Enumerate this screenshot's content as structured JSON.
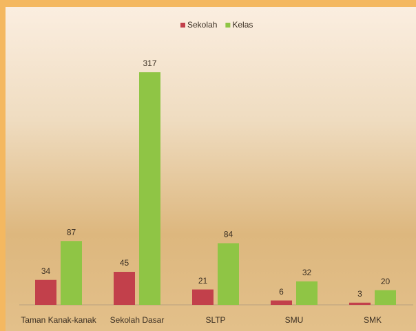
{
  "chart_data": {
    "type": "bar",
    "categories": [
      "Taman Kanak-kanak",
      "Sekolah Dasar",
      "SLTP",
      "SMU",
      "SMK"
    ],
    "series": [
      {
        "name": "Sekolah",
        "color": "#c2404b",
        "values": [
          34,
          45,
          21,
          6,
          3
        ]
      },
      {
        "name": "Kelas",
        "color": "#8fc545",
        "values": [
          87,
          317,
          84,
          32,
          20
        ]
      }
    ]
  }
}
